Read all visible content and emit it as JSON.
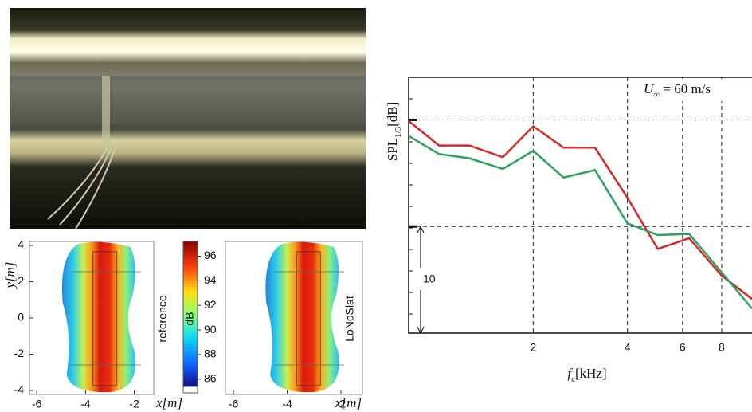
{
  "maps": {
    "x_label": "x[m]",
    "y_label": "y[m]",
    "xlim": [
      -6.3,
      -1.2
    ],
    "xticks": [
      -6,
      -4,
      -2
    ],
    "ylim": [
      -4,
      4
    ],
    "yticks": [
      4,
      2,
      0,
      -2,
      -4
    ],
    "panels": [
      "reference",
      "LoNoSlat"
    ],
    "colorbar": {
      "label": "dB",
      "lim": [
        85.4,
        97.2
      ],
      "ticks": [
        86,
        88,
        90,
        92,
        94,
        96
      ]
    }
  },
  "chart_data": {
    "type": "line",
    "xlog": true,
    "x": [
      0.8,
      1,
      1.25,
      1.6,
      2,
      2.5,
      3.15,
      4,
      5,
      6.3,
      8,
      10
    ],
    "series": [
      {
        "color": "#d62728",
        "values": [
          19.9,
          17.6,
          17.6,
          16.5,
          19.4,
          17.4,
          17.4,
          12.7,
          7.9,
          8.9,
          5.4,
          3.2
        ]
      },
      {
        "color": "#2ca25f",
        "values": [
          18.5,
          16.8,
          16.4,
          15.4,
          17.1,
          14.6,
          15.3,
          10.3,
          9.2,
          9.3,
          5.7,
          2.3
        ]
      }
    ],
    "xlim": [
      0.8,
      10
    ],
    "xticks": [
      2,
      4,
      6,
      8
    ],
    "ylim": [
      0,
      24
    ],
    "ygrid": [
      10,
      20
    ],
    "scale_bar": 10,
    "x_label": {
      "main": "f",
      "sub": "c",
      "unit": "[kHz]"
    },
    "y_label": {
      "main": "SPL",
      "sub": "1/3",
      "unit": "[dB]"
    },
    "annotation": {
      "main": "U",
      "sub": "∞",
      "rest": " = 60 m/s"
    }
  }
}
